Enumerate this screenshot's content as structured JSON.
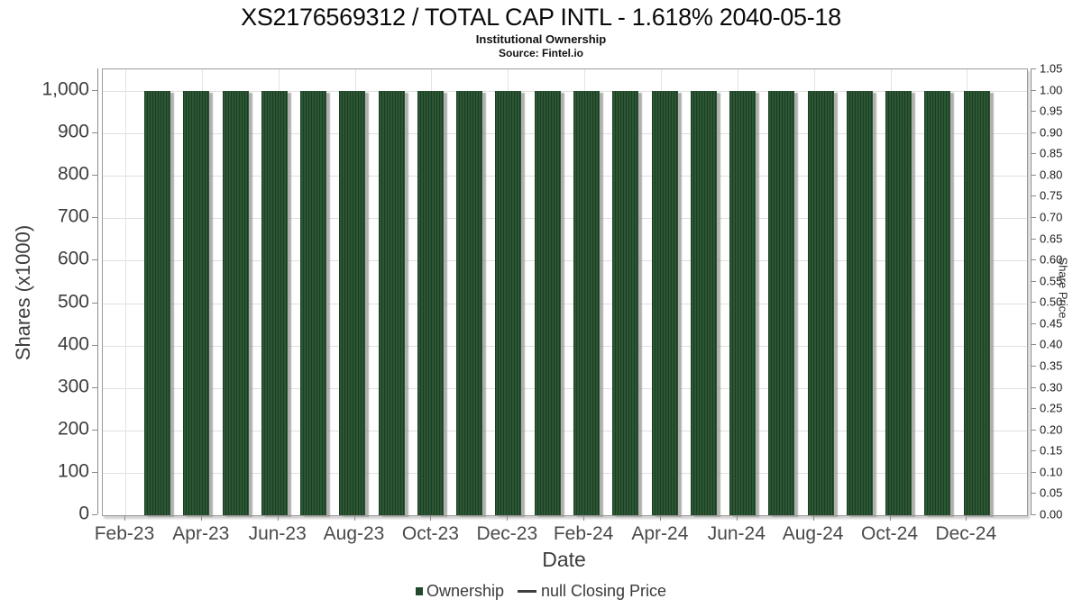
{
  "header": {
    "title": "XS2176569312 / TOTAL CAP INTL - 1.618% 2040-05-18",
    "subtitle": "Institutional Ownership",
    "source": "Source: Fintel.io"
  },
  "chart_data": {
    "type": "bar",
    "title": "XS2176569312 / TOTAL CAP INTL - 1.618% 2040-05-18",
    "subtitle": "Institutional Ownership",
    "source": "Source: Fintel.io",
    "xlabel": "Date",
    "ylabel_left": "Shares (x1000)",
    "ylabel_right": "Share Price",
    "grid": true,
    "legend_position": "bottom",
    "x_tick_labels": [
      "Feb-23",
      "Apr-23",
      "Jun-23",
      "Aug-23",
      "Oct-23",
      "Dec-23",
      "Feb-24",
      "Apr-24",
      "Jun-24",
      "Aug-24",
      "Oct-24",
      "Dec-24"
    ],
    "y_left_axis": {
      "min": 0,
      "max": 1051,
      "tick_values": [
        0,
        100,
        200,
        300,
        400,
        500,
        600,
        700,
        800,
        900,
        1000
      ],
      "tick_labels": [
        "0",
        "100",
        "200",
        "300",
        "400",
        "500",
        "600",
        "700",
        "800",
        "900",
        "1,000"
      ]
    },
    "y_right_axis": {
      "min": 0.0,
      "max": 1.05,
      "tick_labels": [
        "0.00",
        "0.05",
        "0.10",
        "0.15",
        "0.20",
        "0.25",
        "0.30",
        "0.35",
        "0.40",
        "0.45",
        "0.50",
        "0.55",
        "0.60",
        "0.65",
        "0.70",
        "0.75",
        "0.80",
        "0.85",
        "0.90",
        "0.95",
        "1.00",
        "1.05"
      ]
    },
    "series": [
      {
        "name": "Ownership",
        "type": "bar",
        "color": "#24492b",
        "categories": [
          "Mar-23",
          "Apr-23",
          "May-23",
          "Jun-23",
          "Jul-23",
          "Aug-23",
          "Sep-23",
          "Oct-23",
          "Nov-23",
          "Dec-23",
          "Jan-24",
          "Feb-24",
          "Mar-24",
          "Apr-24",
          "May-24",
          "Jun-24",
          "Jul-24",
          "Aug-24",
          "Sep-24",
          "Oct-24",
          "Nov-24",
          "Dec-24"
        ],
        "values": [
          1000,
          1000,
          1000,
          1000,
          1000,
          1000,
          1000,
          1000,
          1000,
          1000,
          1000,
          1000,
          1000,
          1000,
          1000,
          1000,
          1000,
          1000,
          1000,
          1000,
          1000,
          1000
        ]
      },
      {
        "name": "null Closing Price",
        "type": "line",
        "color": "#3f3f3f",
        "values": []
      }
    ]
  },
  "legend": {
    "items": [
      {
        "label": "Ownership",
        "marker": "square",
        "color": "#24492b"
      },
      {
        "label": "null Closing Price",
        "marker": "line",
        "color": "#3f3f3f"
      }
    ]
  },
  "colors": {
    "bar_stripe_dark": "#1a3e21",
    "bar_stripe_light": "#2d5635",
    "bar_shadow": "#a8a8a6",
    "grid_line": "#e0e0e0",
    "plot_border": "#9a9a9a",
    "tick_text": "#3d3d3d"
  }
}
